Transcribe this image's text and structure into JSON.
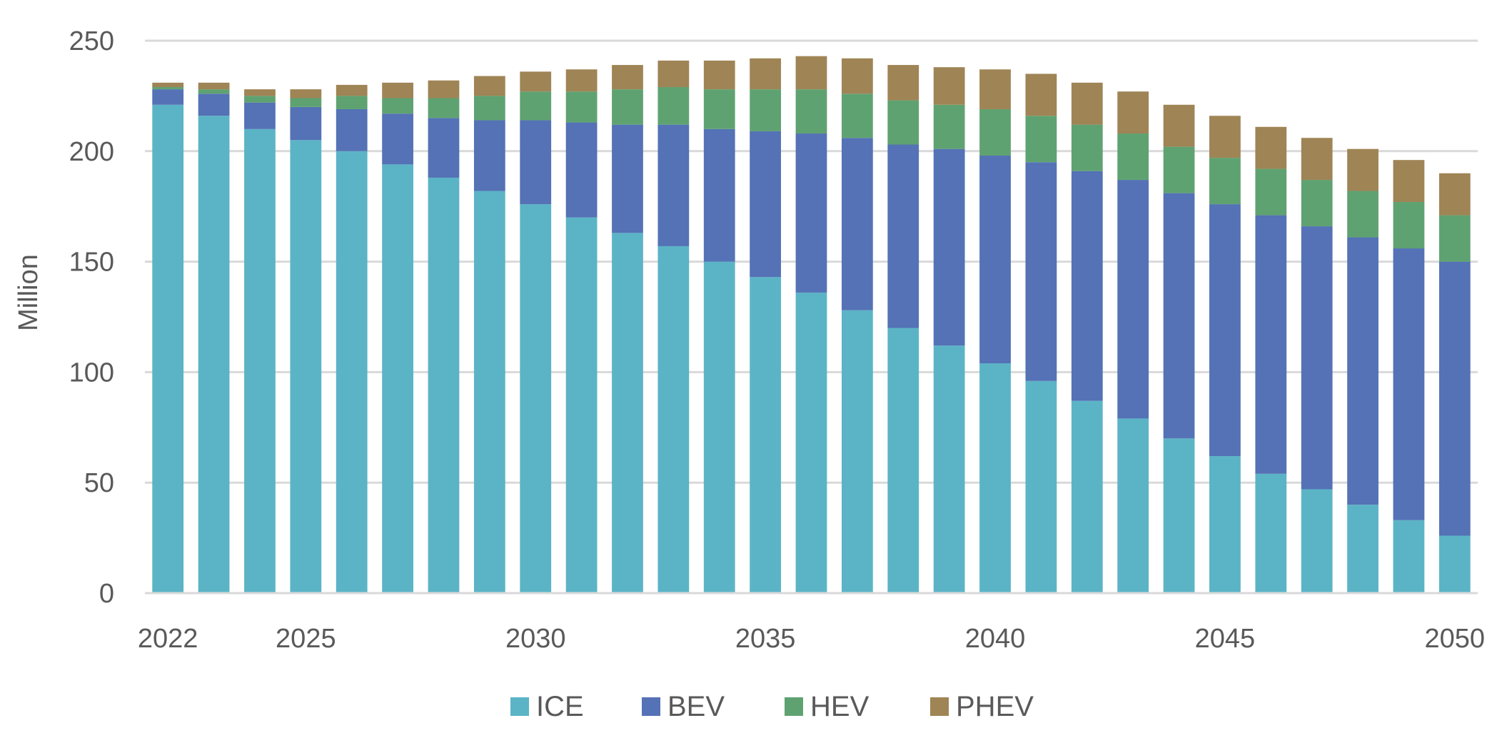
{
  "chart_data": {
    "type": "bar",
    "stacked": true,
    "ylabel": "Million",
    "ylim": [
      0,
      250
    ],
    "yticks": [
      "0",
      "50",
      "100",
      "150",
      "200",
      "250"
    ],
    "xtick_labels": [
      "2022",
      "2025",
      "2030",
      "2035",
      "2040",
      "2045",
      "2050"
    ],
    "grid": "horizontal",
    "legend_position": "bottom",
    "categories": [
      "2022",
      "2023",
      "2024",
      "2025",
      "2026",
      "2027",
      "2028",
      "2029",
      "2030",
      "2031",
      "2032",
      "2033",
      "2034",
      "2035",
      "2036",
      "2037",
      "2038",
      "2039",
      "2040",
      "2041",
      "2042",
      "2043",
      "2044",
      "2045",
      "2046",
      "2047",
      "2048",
      "2049",
      "2050"
    ],
    "series": [
      {
        "name": "ICE",
        "color": "#5BB4C6",
        "values": [
          221,
          216,
          210,
          205,
          200,
          194,
          188,
          182,
          176,
          170,
          163,
          157,
          150,
          143,
          136,
          128,
          120,
          112,
          104,
          96,
          87,
          79,
          70,
          62,
          54,
          47,
          40,
          33,
          26
        ]
      },
      {
        "name": "BEV",
        "color": "#5472B5",
        "values": [
          7,
          10,
          12,
          15,
          19,
          23,
          27,
          32,
          38,
          43,
          49,
          55,
          60,
          66,
          72,
          78,
          83,
          89,
          94,
          99,
          104,
          108,
          111,
          114,
          117,
          119,
          121,
          123,
          124
        ]
      },
      {
        "name": "HEV",
        "color": "#5FA271",
        "values": [
          1,
          2,
          3,
          4,
          6,
          7,
          9,
          11,
          13,
          14,
          16,
          17,
          18,
          19,
          20,
          20,
          20,
          20,
          21,
          21,
          21,
          21,
          21,
          21,
          21,
          21,
          21,
          21,
          21
        ]
      },
      {
        "name": "PHEV",
        "color": "#9F8455",
        "values": [
          2,
          3,
          3,
          4,
          5,
          7,
          8,
          9,
          9,
          10,
          11,
          12,
          13,
          14,
          15,
          16,
          16,
          17,
          18,
          19,
          19,
          19,
          19,
          19,
          19,
          19,
          19,
          19,
          19
        ]
      }
    ]
  }
}
